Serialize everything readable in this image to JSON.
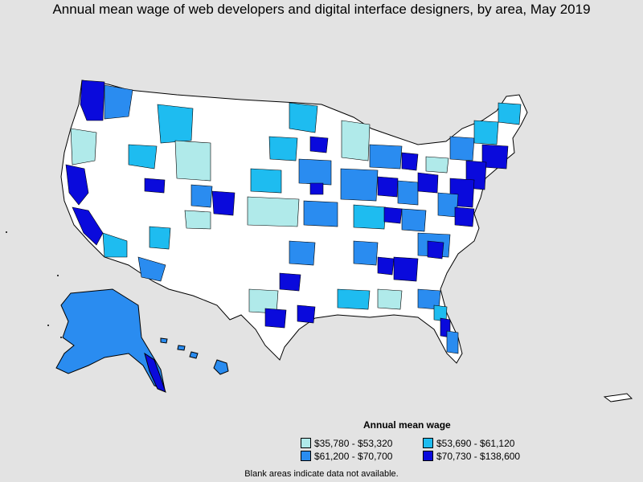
{
  "title": "Annual mean wage of web developers and digital interface designers, by area, May 2019",
  "legend": {
    "title": "Annual mean wage",
    "items": [
      {
        "label": "$35,780 - $53,320",
        "color": "#b0eaea"
      },
      {
        "label": "$53,690 - $61,120",
        "color": "#1ebcf0"
      },
      {
        "label": "$61,200 - $70,700",
        "color": "#2a8cf0"
      },
      {
        "label": "$70,730 - $138,600",
        "color": "#0a0adc"
      }
    ]
  },
  "note": "Blank areas indicate data not available.",
  "colors": {
    "background": "#e3e3e3",
    "land": "#ffffff",
    "border": "#000000"
  }
}
